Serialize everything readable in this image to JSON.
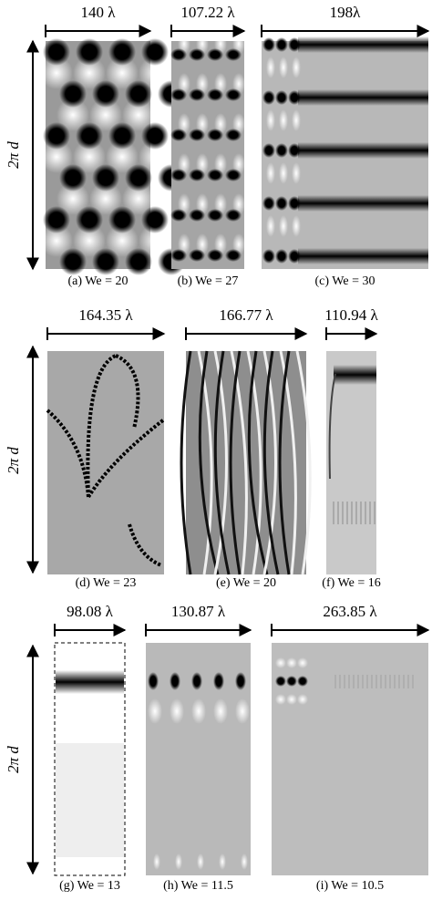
{
  "y_label": "2π d",
  "panels": [
    {
      "span": "140 λ",
      "caption": "(a) We = 20"
    },
    {
      "span": "107.22 λ",
      "caption": "(b) We = 27"
    },
    {
      "span": "198λ",
      "caption": "(c) We = 30"
    },
    {
      "span": "164.35 λ",
      "caption": "(d) We = 23"
    },
    {
      "span": "166.77 λ",
      "caption": "(e) We = 20"
    },
    {
      "span": "110.94 λ",
      "caption": "(f) We = 16"
    },
    {
      "span": "98.08 λ",
      "caption": "(g) We = 13"
    },
    {
      "span": "130.87 λ",
      "caption": "(h) We = 11.5"
    },
    {
      "span": "263.85 λ",
      "caption": "(i) We = 10.5"
    }
  ]
}
